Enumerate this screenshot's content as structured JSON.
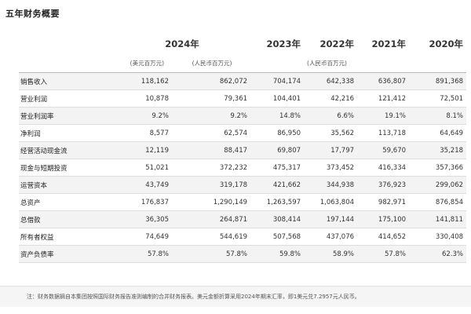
{
  "title": "五年财务概要",
  "header": {
    "year_2024": "2024年",
    "year_2023": "2023年",
    "year_2022": "2022年",
    "year_2021": "2021年",
    "year_2020": "2020年",
    "unit_usd": "(美元百万元)",
    "unit_rmb": "(人民币百万元)",
    "unit_rmb_hist": "(人民币百万元)"
  },
  "rows": [
    {
      "label": "销售收入",
      "v": [
        "118,162",
        "862,072",
        "704,174",
        "642,338",
        "636,807",
        "891,368"
      ]
    },
    {
      "label": "营业利润",
      "v": [
        "10,878",
        "79,361",
        "104,401",
        "42,216",
        "121,412",
        "72,501"
      ]
    },
    {
      "label": "营业利润率",
      "v": [
        "9.2%",
        "9.2%",
        "14.8%",
        "6.6%",
        "19.1%",
        "8.1%"
      ]
    },
    {
      "label": "净利润",
      "v": [
        "8,577",
        "62,574",
        "86,950",
        "35,562",
        "113,718",
        "64,649"
      ]
    },
    {
      "label": "经营活动现金流",
      "v": [
        "12,119",
        "88,417",
        "69,807",
        "17,797",
        "59,670",
        "35,218"
      ]
    },
    {
      "label": "现金与短期投资",
      "v": [
        "51,021",
        "372,232",
        "475,317",
        "373,452",
        "416,334",
        "357,366"
      ]
    },
    {
      "label": "运营资本",
      "v": [
        "43,749",
        "319,178",
        "421,662",
        "344,938",
        "376,923",
        "299,062"
      ]
    },
    {
      "label": "总资产",
      "v": [
        "176,837",
        "1,290,149",
        "1,263,597",
        "1,063,804",
        "982,971",
        "876,854"
      ]
    },
    {
      "label": "总借款",
      "v": [
        "36,305",
        "264,871",
        "308,414",
        "197,144",
        "175,100",
        "141,811"
      ]
    },
    {
      "label": "所有者权益",
      "v": [
        "74,649",
        "544,619",
        "507,568",
        "437,076",
        "414,652",
        "330,408"
      ]
    },
    {
      "label": "资产负债率",
      "v": [
        "57.8%",
        "57.8%",
        "59.8%",
        "58.9%",
        "57.8%",
        "62.3%"
      ]
    }
  ],
  "footnote": "注：财务数据摘自本集团按照国际财务报告准则编制的合并财务报表。美元金额折算采用2024年期末汇率，即1美元兑7.2957元人民币。",
  "colors": {
    "shade": "#f3f3f3",
    "rule": "#dddddd"
  }
}
